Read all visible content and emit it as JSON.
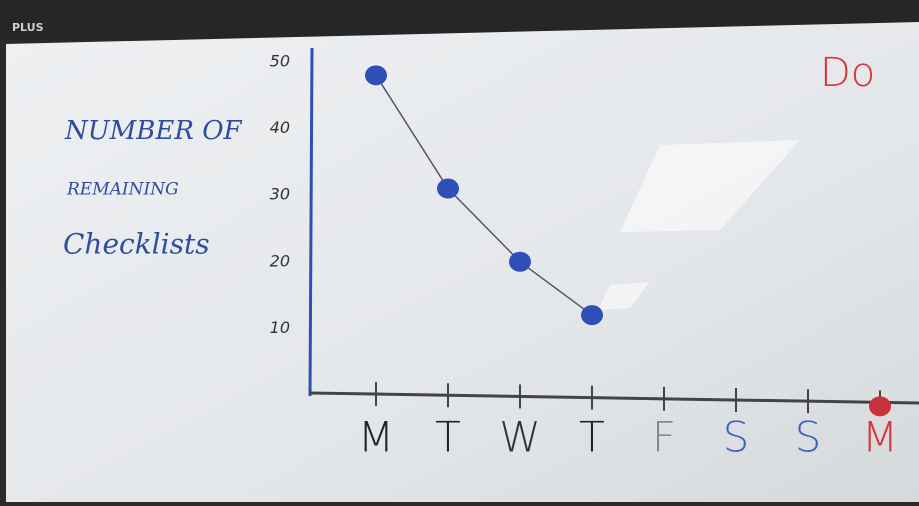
{
  "header": {
    "title": "PLUS"
  },
  "chart_data": {
    "type": "line",
    "ylabel": [
      "NUMBER OF",
      "REMAINING",
      "Checklists"
    ],
    "annotations": [
      "Do"
    ],
    "categories": [
      "M",
      "T",
      "W",
      "T",
      "F",
      "S",
      "S",
      "M"
    ],
    "category_colors": [
      "#222",
      "#222",
      "#333",
      "#222",
      "#888",
      "#3b62c4",
      "#3b62c4",
      "#d8323c"
    ],
    "series": [
      {
        "color": "#2f4fb8",
        "line": true,
        "values": [
          48,
          31,
          20,
          12,
          null,
          null,
          null,
          null
        ]
      },
      {
        "color": "#c8323c",
        "line": false,
        "values": [
          null,
          null,
          null,
          null,
          null,
          null,
          null,
          0
        ]
      }
    ],
    "ylim": [
      0,
      50
    ],
    "yticks": [
      10,
      20,
      30,
      40,
      50
    ],
    "grid": false
  }
}
